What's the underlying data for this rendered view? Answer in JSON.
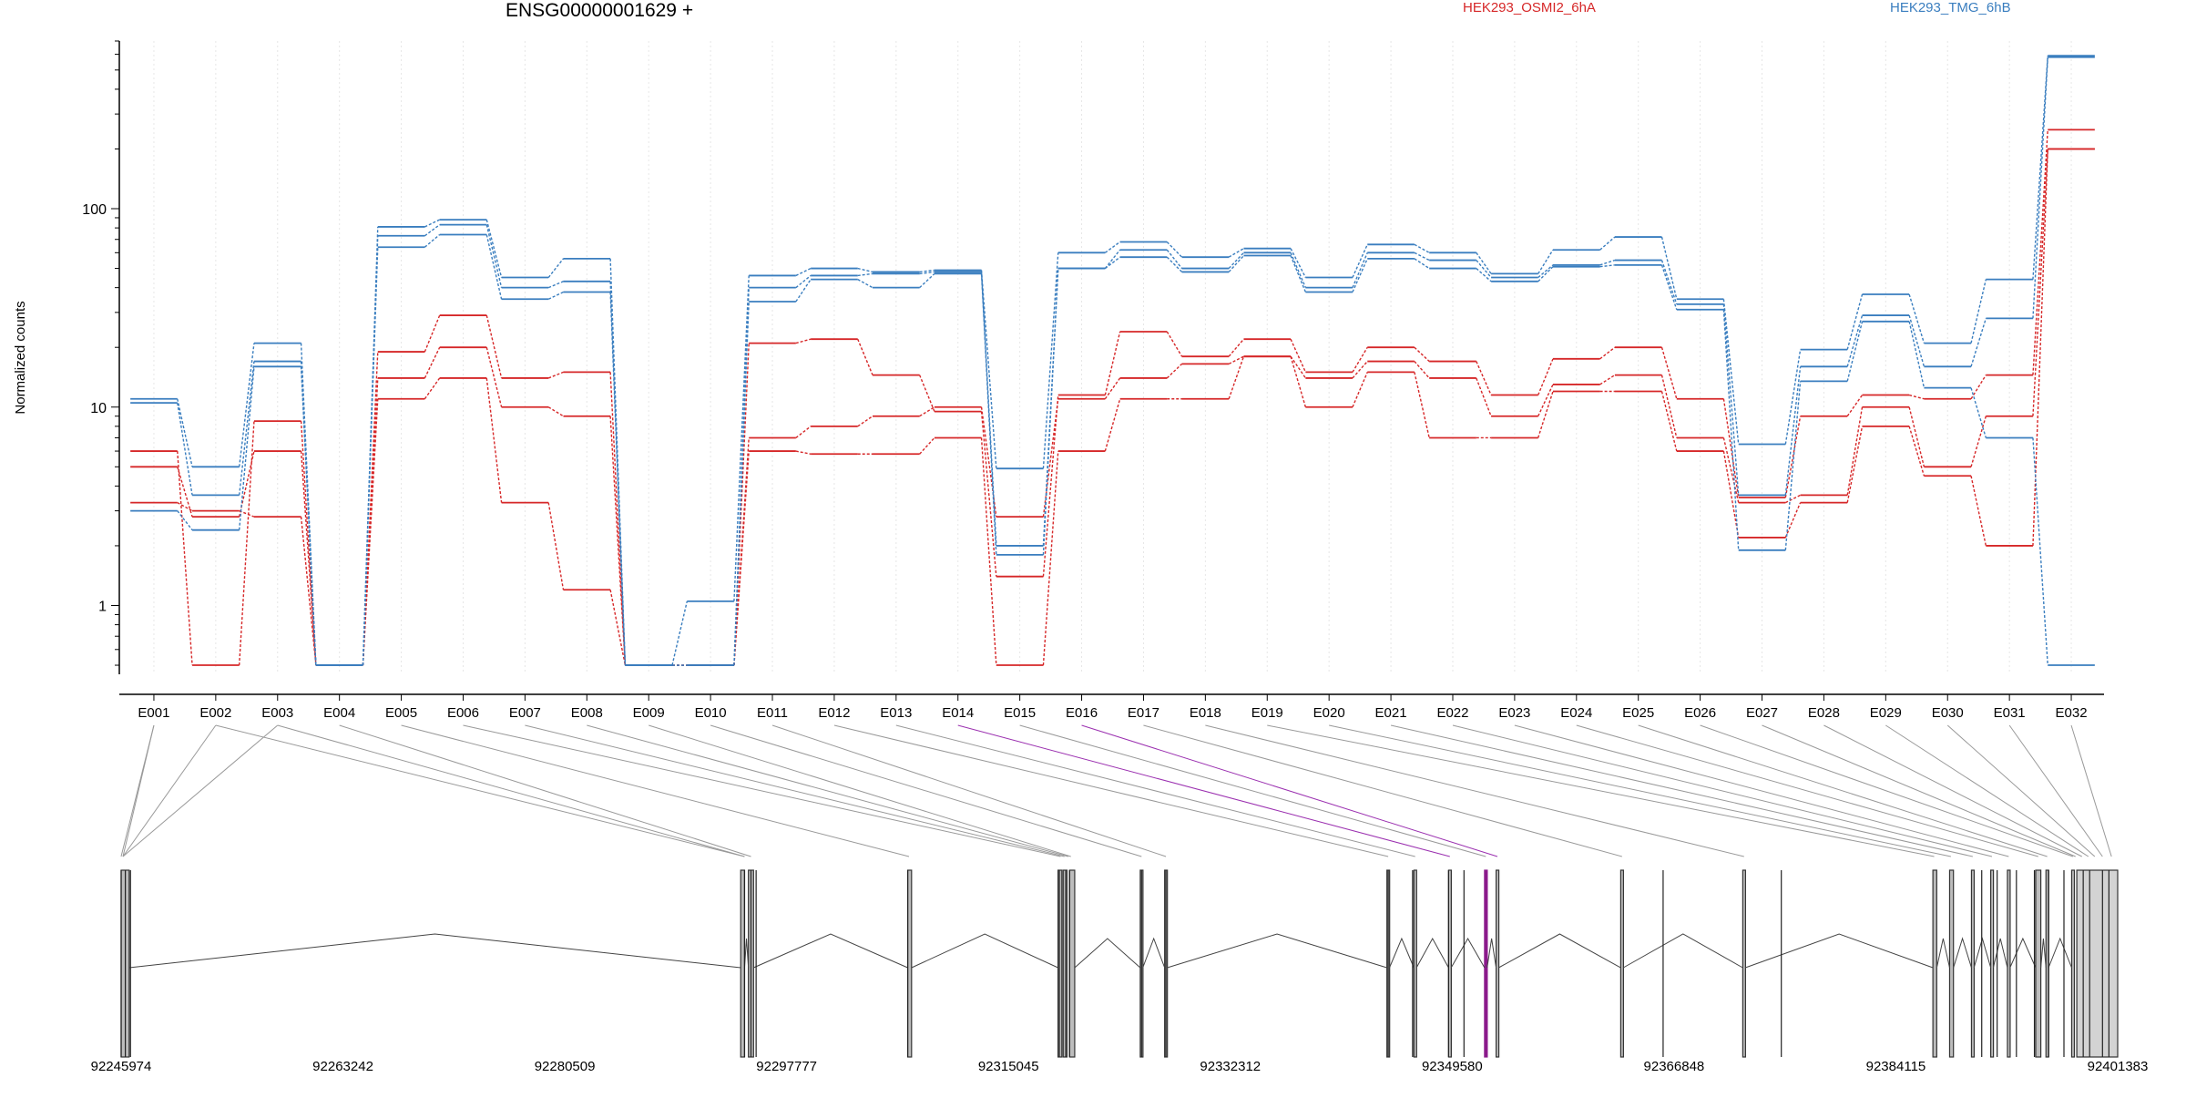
{
  "title": "ENSG00000001629 +",
  "legend": [
    {
      "name": "HEK293_OSMI2_6hA",
      "color": "#d62728"
    },
    {
      "name": "HEK293_TMG_6hB",
      "color": "#3a7ebf"
    }
  ],
  "chart_data": {
    "type": "line",
    "ylabel": "Normalized counts",
    "xlabel": "",
    "yscale": "log",
    "yticks": [
      1,
      10,
      100
    ],
    "ylim": [
      0.45,
      700
    ],
    "categories": [
      "E001",
      "E002",
      "E003",
      "E004",
      "E005",
      "E006",
      "E007",
      "E008",
      "E009",
      "E010",
      "E011",
      "E012",
      "E013",
      "E014",
      "E015",
      "E016",
      "E017",
      "E018",
      "E019",
      "E020",
      "E021",
      "E022",
      "E023",
      "E024",
      "E025",
      "E026",
      "E027",
      "E028",
      "E029",
      "E030",
      "E031",
      "E032"
    ],
    "highlight_exons": [
      "E014",
      "E016"
    ],
    "series": [
      {
        "group": "HEK293_OSMI2_6hA",
        "color": "#d62728",
        "values": [
          6,
          0.5,
          8.5,
          0.5,
          19,
          29,
          14,
          15,
          0.5,
          0.5,
          21,
          22,
          14.5,
          9.5,
          1.4,
          11.5,
          24,
          18,
          22,
          15,
          20,
          17,
          11.5,
          17.5,
          20,
          11,
          3.5,
          9,
          11.5,
          11,
          14.5,
          250
        ]
      },
      {
        "group": "HEK293_OSMI2_6hA",
        "color": "#d62728",
        "values": [
          5,
          2.8,
          6,
          0.5,
          14,
          20,
          10,
          9,
          0.5,
          0.5,
          7,
          8,
          9,
          10,
          2.8,
          11,
          14,
          16.5,
          18,
          14,
          17,
          14,
          9,
          13,
          14.5,
          7,
          3.3,
          3.6,
          10,
          5,
          9,
          200
        ]
      },
      {
        "group": "HEK293_OSMI2_6hA",
        "color": "#d62728",
        "values": [
          3.3,
          3,
          2.8,
          0.5,
          11,
          14,
          3.3,
          1.2,
          0.5,
          0.5,
          6,
          5.8,
          5.8,
          7,
          0.5,
          6,
          11,
          11,
          18,
          10,
          15,
          7,
          7,
          12,
          12,
          6,
          2.2,
          3.3,
          8,
          4.5,
          2,
          200
        ]
      },
      {
        "group": "HEK293_TMG_6hB",
        "color": "#3a7ebf",
        "values": [
          11,
          5,
          21,
          0.5,
          81,
          88,
          45,
          56,
          0.5,
          1.05,
          46,
          50,
          48,
          49,
          4.9,
          60,
          68,
          57,
          63,
          45,
          66,
          60,
          47,
          62,
          72,
          35,
          6.5,
          19.5,
          37,
          21,
          44,
          590
        ]
      },
      {
        "group": "HEK293_TMG_6hB",
        "color": "#3a7ebf",
        "values": [
          10.5,
          3.6,
          17,
          0.5,
          73,
          83,
          40,
          43,
          0.5,
          0.5,
          40,
          46,
          47,
          48,
          2,
          50,
          62,
          50,
          60,
          40,
          60,
          55,
          45,
          52,
          55,
          33,
          3.6,
          16,
          29,
          16,
          28,
          580
        ]
      },
      {
        "group": "HEK293_TMG_6hB",
        "color": "#3a7ebf",
        "values": [
          3,
          2.4,
          16,
          0.5,
          64,
          74,
          35,
          38,
          0.5,
          0.5,
          34,
          44,
          40,
          47,
          1.8,
          50,
          57,
          48,
          58,
          38,
          56,
          50,
          43,
          51,
          52,
          31,
          1.9,
          13.5,
          27,
          12.5,
          7,
          0.5
        ]
      }
    ],
    "gene_model": {
      "coordinate_ticks": [
        "92245974",
        "92263242",
        "92280509",
        "92297777",
        "92315045",
        "92332312",
        "92349580",
        "92366848",
        "92384115",
        "92401383"
      ]
    }
  }
}
